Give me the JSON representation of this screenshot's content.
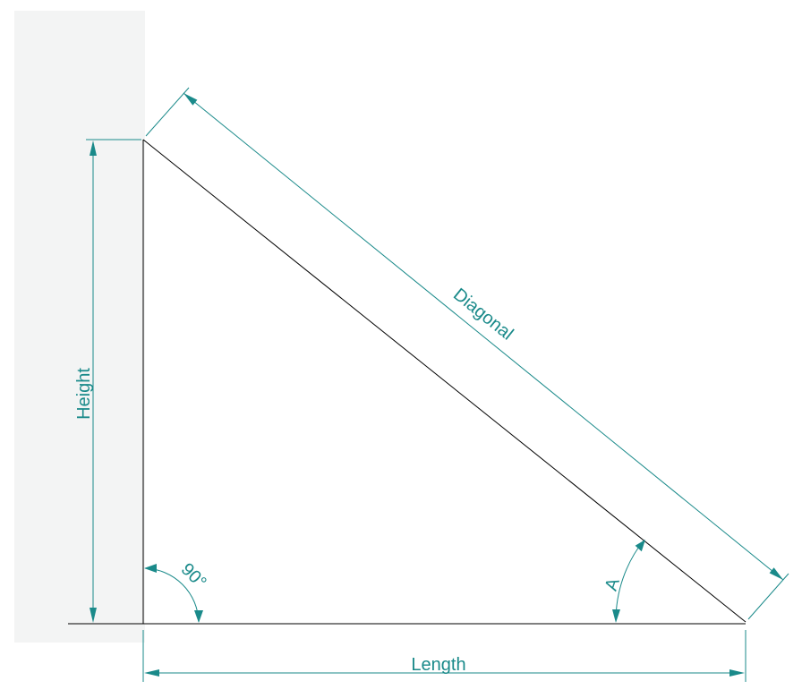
{
  "labels": {
    "height": "Height",
    "length": "Length",
    "diagonal": "Diagonal",
    "right_angle": "90°",
    "angle": "A"
  },
  "colors": {
    "dimension": "#1a8a8a",
    "edge": "#000000",
    "wall": "#f3f4f4"
  }
}
